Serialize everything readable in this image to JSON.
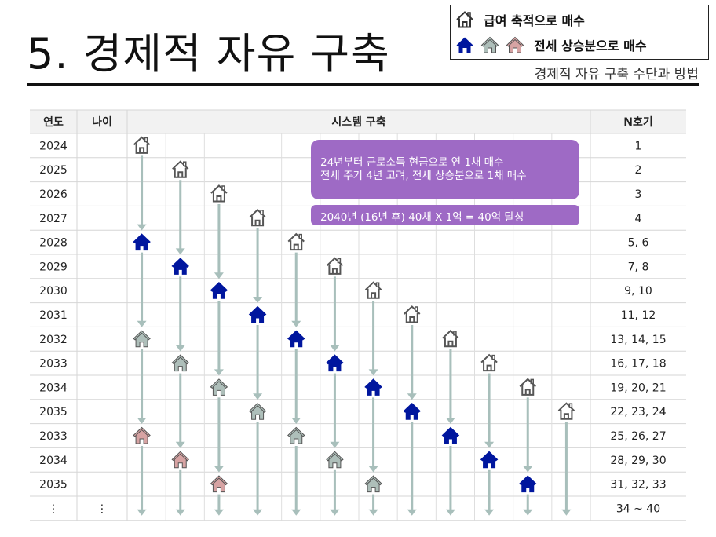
{
  "title": "5. 경제적 자유 구축",
  "subtitle": "경제적 자유 구축 수단과 방법",
  "legend": {
    "row1_label": "급여 축적으로 매수",
    "row2_label": "전세 상승분으로 매수"
  },
  "colors": {
    "outline_house": "#555555",
    "blue_house": "#00169e",
    "gray_house": "#aebfba",
    "pink_house": "#d7a3a3",
    "arrow": "#a8bfbb",
    "note_bg": "#9e6ac5",
    "header_bg": "#f2f2f2"
  },
  "table": {
    "headers": {
      "year": "연도",
      "age": "나이",
      "system": "시스템 구축",
      "count": "N호기"
    },
    "rows": [
      {
        "year": "2024",
        "age": "",
        "count": "1"
      },
      {
        "year": "2025",
        "age": "",
        "count": "2"
      },
      {
        "year": "2026",
        "age": "",
        "count": "3"
      },
      {
        "year": "2027",
        "age": "",
        "count": "4"
      },
      {
        "year": "2028",
        "age": "",
        "count": "5, 6"
      },
      {
        "year": "2029",
        "age": "",
        "count": "7, 8"
      },
      {
        "year": "2030",
        "age": "",
        "count": "9, 10"
      },
      {
        "year": "2031",
        "age": "",
        "count": "11, 12"
      },
      {
        "year": "2032",
        "age": "",
        "count": "13, 14, 15"
      },
      {
        "year": "2033",
        "age": "",
        "count": "16, 17, 18"
      },
      {
        "year": "2034",
        "age": "",
        "count": "19, 20, 21"
      },
      {
        "year": "2035",
        "age": "",
        "count": "22, 23, 24"
      },
      {
        "year": "2033",
        "age": "",
        "count": "25, 26, 27"
      },
      {
        "year": "2034",
        "age": "",
        "count": "28, 29, 30"
      },
      {
        "year": "2035",
        "age": "",
        "count": "31, 32, 33"
      },
      {
        "year": "⋮",
        "age": "⋮",
        "count": "34 ~ 40"
      }
    ]
  },
  "notes": {
    "note1_line1": "24년부터 근로소득 현금으로 연 1채 매수",
    "note1_line2": "전세 주기 4년 고려, 전세 상승분으로 1채 매수",
    "note2": "2040년 (16년 후) 40채 X 1억 = 40억 달성"
  },
  "diagram": {
    "houses": [
      {
        "col": 0,
        "row": 0,
        "type": "outline"
      },
      {
        "col": 1,
        "row": 1,
        "type": "outline"
      },
      {
        "col": 2,
        "row": 2,
        "type": "outline"
      },
      {
        "col": 3,
        "row": 3,
        "type": "outline"
      },
      {
        "col": 0,
        "row": 4,
        "type": "blue"
      },
      {
        "col": 4,
        "row": 4,
        "type": "outline"
      },
      {
        "col": 1,
        "row": 5,
        "type": "blue"
      },
      {
        "col": 5,
        "row": 5,
        "type": "outline"
      },
      {
        "col": 2,
        "row": 6,
        "type": "blue"
      },
      {
        "col": 6,
        "row": 6,
        "type": "outline"
      },
      {
        "col": 3,
        "row": 7,
        "type": "blue"
      },
      {
        "col": 7,
        "row": 7,
        "type": "outline"
      },
      {
        "col": 0,
        "row": 8,
        "type": "gray"
      },
      {
        "col": 4,
        "row": 8,
        "type": "blue"
      },
      {
        "col": 8,
        "row": 8,
        "type": "outline"
      },
      {
        "col": 1,
        "row": 9,
        "type": "gray"
      },
      {
        "col": 5,
        "row": 9,
        "type": "blue"
      },
      {
        "col": 9,
        "row": 9,
        "type": "outline"
      },
      {
        "col": 2,
        "row": 10,
        "type": "gray"
      },
      {
        "col": 6,
        "row": 10,
        "type": "blue"
      },
      {
        "col": 10,
        "row": 10,
        "type": "outline"
      },
      {
        "col": 3,
        "row": 11,
        "type": "gray"
      },
      {
        "col": 7,
        "row": 11,
        "type": "blue"
      },
      {
        "col": 11,
        "row": 11,
        "type": "outline"
      },
      {
        "col": 0,
        "row": 12,
        "type": "pink"
      },
      {
        "col": 4,
        "row": 12,
        "type": "gray"
      },
      {
        "col": 8,
        "row": 12,
        "type": "blue"
      },
      {
        "col": 1,
        "row": 13,
        "type": "pink"
      },
      {
        "col": 5,
        "row": 13,
        "type": "gray"
      },
      {
        "col": 9,
        "row": 13,
        "type": "blue"
      },
      {
        "col": 2,
        "row": 14,
        "type": "pink"
      },
      {
        "col": 6,
        "row": 14,
        "type": "gray"
      },
      {
        "col": 10,
        "row": 14,
        "type": "blue"
      }
    ]
  }
}
